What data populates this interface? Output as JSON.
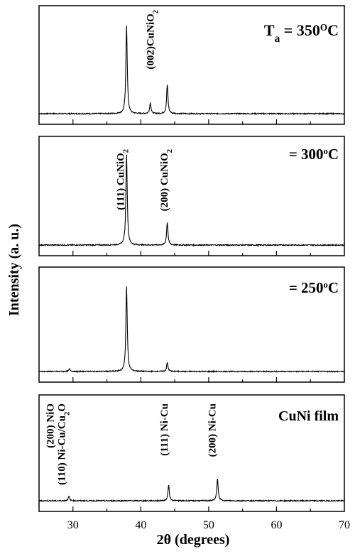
{
  "figure": {
    "ylabel": "Intensity (a. u.)",
    "xlabel": "2θ (degrees)",
    "x_ticks": [
      "30",
      "40",
      "50",
      "60",
      "70"
    ]
  },
  "chart_data": [
    {
      "type": "line",
      "label": "Ta = 350°C",
      "xlim": [
        25,
        70
      ],
      "ylim": [
        0,
        1
      ],
      "peaks": [
        [
          37.9,
          0.98
        ],
        [
          41.4,
          0.12
        ],
        [
          43.9,
          0.32
        ]
      ],
      "annotations": [
        {
          "text": "(002)CuNiO2",
          "x": 41.4
        }
      ]
    },
    {
      "type": "line",
      "label": "= 300°C",
      "xlim": [
        25,
        70
      ],
      "ylim": [
        0,
        1
      ],
      "peaks": [
        [
          37.9,
          1.0
        ],
        [
          43.9,
          0.25
        ]
      ],
      "annotations": [
        {
          "text": "(111) CuNiO2",
          "x": 37.0
        },
        {
          "text": "(200) CuNiO2",
          "x": 43.4
        }
      ]
    },
    {
      "type": "line",
      "label": "= 250°C",
      "xlim": [
        25,
        70
      ],
      "ylim": [
        0,
        1
      ],
      "peaks": [
        [
          29.5,
          0.03
        ],
        [
          37.9,
          0.98
        ],
        [
          43.9,
          0.1
        ]
      ],
      "annotations": []
    },
    {
      "type": "line",
      "label": "CuNi film",
      "xlim": [
        25,
        70
      ],
      "ylim": [
        0,
        1
      ],
      "peaks": [
        [
          29.4,
          0.05
        ],
        [
          44.1,
          0.18
        ],
        [
          51.3,
          0.25
        ]
      ],
      "annotations": [
        {
          "text": "(200) NiO",
          "x": 26.6
        },
        {
          "text": "(110) Ni-Cu/Cu2O",
          "x": 28.3
        },
        {
          "text": "(111) Ni-Cu",
          "x": 43.4
        },
        {
          "text": "(200) Ni-Cu",
          "x": 50.5
        }
      ]
    }
  ]
}
